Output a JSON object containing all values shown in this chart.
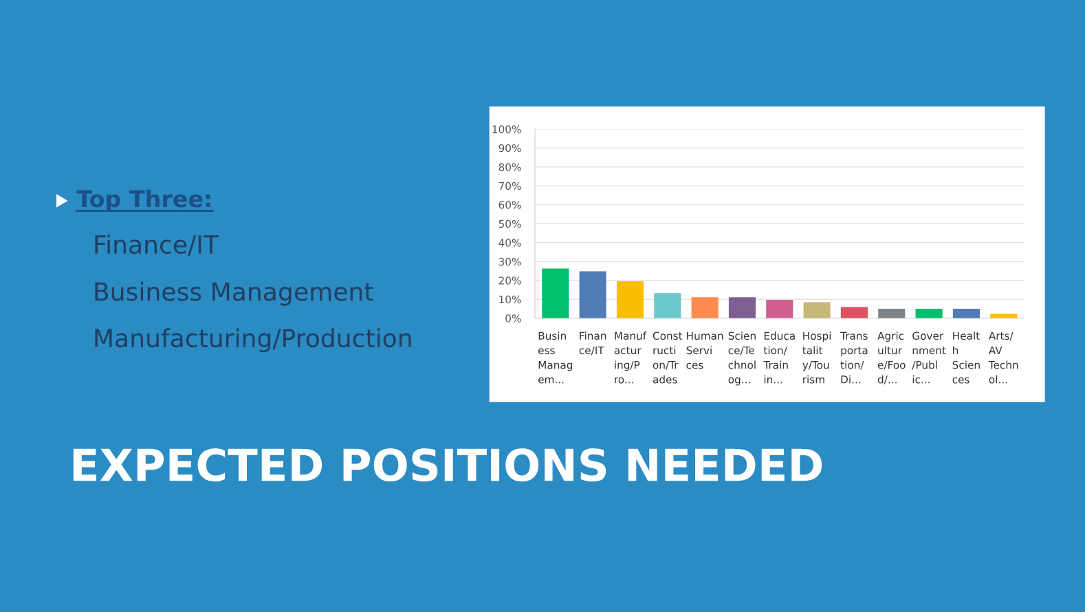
{
  "chart_data": {
    "type": "bar",
    "title": "EXPECTED POSITIONS NEEDED",
    "annotations": [
      "Top Three:",
      "Finance/IT",
      "Business Management",
      "Manufacturing/Production"
    ],
    "categories": [
      "Busin\ness\nManag\nem...",
      "Finan\nce/IT",
      "Manuf\nactur\ning/P\nro...",
      "Const\nructi\non/Tr\nades",
      "Human\nServi\nces",
      "Scien\nce/Te\nchnol\nog...",
      "Educa\ntion/\nTrain\nin...",
      "Hospi\ntalit\ny/Tou\nrism",
      "Trans\nporta\ntion/\nDi...",
      "Agric\nultur\ne/Foo\nd/...",
      "Gover\nnment\n/Publ\nic...",
      "Healt\nh\nScien\nces",
      "Arts/\nAV\nTechn\nol..."
    ],
    "values": [
      26.3,
      24.8,
      19.6,
      13.3,
      11.1,
      11.1,
      9.7,
      8.5,
      5.9,
      5.0,
      5.0,
      5.0,
      2.3
    ],
    "colors": [
      "#00bf6f",
      "#507cb6",
      "#f9be00",
      "#6bc8cd",
      "#ff8b4f",
      "#7f5f93",
      "#d25f90",
      "#c7b879",
      "#e05161",
      "#7d8289",
      "#00bf6f",
      "#507cb6",
      "#f9be00"
    ],
    "ylim": [
      0,
      100
    ],
    "yticks": [
      {
        "value": 0,
        "label": "0%"
      },
      {
        "value": 10,
        "label": "10%"
      },
      {
        "value": 20,
        "label": "20%"
      },
      {
        "value": 30,
        "label": "30%"
      },
      {
        "value": 40,
        "label": "40%"
      },
      {
        "value": 50,
        "label": "50%"
      },
      {
        "value": 60,
        "label": "60%"
      },
      {
        "value": 70,
        "label": "70%"
      },
      {
        "value": 80,
        "label": "80%"
      },
      {
        "value": 90,
        "label": "90%"
      },
      {
        "value": 100,
        "label": "100%"
      }
    ],
    "grid": "y"
  }
}
